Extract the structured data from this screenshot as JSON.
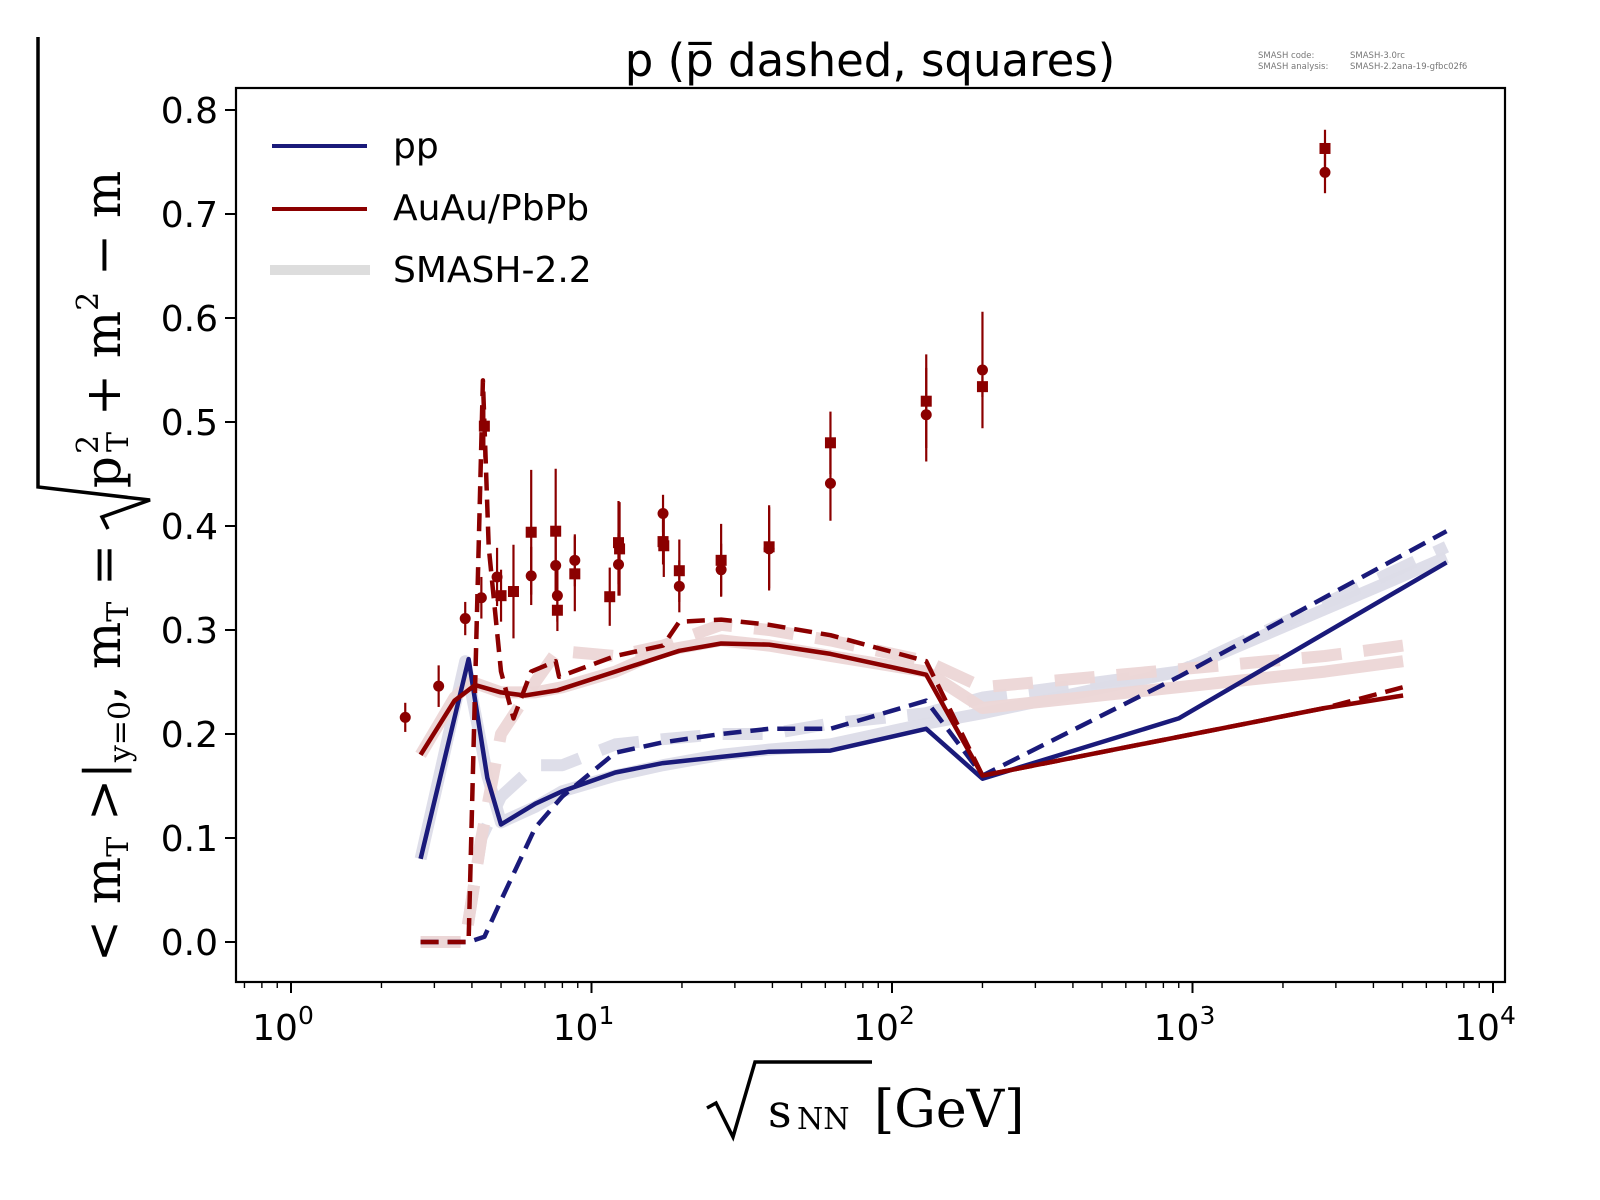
{
  "chart_data": {
    "type": "line",
    "title": "p (p̅ dashed, squares)",
    "annotation": {
      "code_label": "SMASH code:",
      "code_value": "SMASH-3.0rc",
      "analysis_label": "SMASH analysis:",
      "analysis_value": "SMASH-2.2ana-19-gfbc02f6"
    },
    "xlabel": "√s_NN [GeV]",
    "xlabel_parts": {
      "sqrt": "√",
      "s": "s",
      "sub": "NN",
      "unit": "[GeV]"
    },
    "ylabel": "<m_T>|_{y=0}, m_T = √(p_T^2 + m^2) − m",
    "ylabel_parts": {
      "a": "< m",
      "a_sub": "T",
      "b": " >|",
      "b_sub": "y=0",
      "c": ", m",
      "c_sub": "T",
      "d": " = ",
      "e": "p",
      "e_sup": "2",
      "e_sub": "T",
      "f": " + m",
      "f_sup": "2",
      "g": " − m"
    },
    "xscale": "log",
    "xlim": [
      0.66,
      11000
    ],
    "ylim": [
      -0.04,
      0.82
    ],
    "x_ticks": [
      {
        "value": 1,
        "base": "10",
        "exp": "0"
      },
      {
        "value": 10,
        "base": "10",
        "exp": "1"
      },
      {
        "value": 100,
        "base": "10",
        "exp": "2"
      },
      {
        "value": 1000,
        "base": "10",
        "exp": "3"
      },
      {
        "value": 10000,
        "base": "10",
        "exp": "4"
      }
    ],
    "y_ticks": [
      {
        "value": 0.0,
        "label": "0.0"
      },
      {
        "value": 0.1,
        "label": "0.1"
      },
      {
        "value": 0.2,
        "label": "0.2"
      },
      {
        "value": 0.3,
        "label": "0.3"
      },
      {
        "value": 0.4,
        "label": "0.4"
      },
      {
        "value": 0.5,
        "label": "0.5"
      },
      {
        "value": 0.6,
        "label": "0.6"
      },
      {
        "value": 0.7,
        "label": "0.7"
      },
      {
        "value": 0.8,
        "label": "0.8"
      }
    ],
    "grid": false,
    "legend": {
      "placement": "top-left",
      "entries": [
        {
          "label": "pp",
          "color": "#1a1a7a",
          "style": "solid"
        },
        {
          "label": "AuAu/PbPb",
          "color": "#8b0000",
          "style": "solid"
        },
        {
          "label": "SMASH-2.2",
          "color": "#dddddd",
          "style": "thick"
        }
      ]
    },
    "colors": {
      "pp": "#1a1a7a",
      "aa": "#8b0000",
      "smash_pp": "#dcdce8",
      "smash_aa": "#ecd6d6"
    },
    "series": [
      {
        "name": "SMASH-2.2 pp (p)",
        "style": "smash-solid",
        "color": "#dcdce8",
        "x": [
          2.7,
          3.8,
          4.5,
          5.0,
          6.5,
          8.0,
          12,
          17.3,
          27,
          39,
          62.4,
          130,
          200,
          900,
          7000
        ],
        "y": [
          0.08,
          0.27,
          0.16,
          0.115,
          0.13,
          0.145,
          0.16,
          0.17,
          0.18,
          0.185,
          0.19,
          0.21,
          0.22,
          0.26,
          0.37
        ]
      },
      {
        "name": "SMASH-2.2 pp (pbar)",
        "style": "smash-dashed",
        "color": "#dcdce8",
        "x": [
          2.7,
          3.8,
          4.3,
          5.0,
          6.5,
          8.0,
          12,
          17.3,
          27,
          39,
          62.4,
          130,
          200,
          900,
          7000
        ],
        "y": [
          0.0,
          0.0,
          0.1,
          0.14,
          0.17,
          0.17,
          0.19,
          0.195,
          0.2,
          0.2,
          0.21,
          0.22,
          0.235,
          0.26,
          0.38
        ]
      },
      {
        "name": "SMASH-2.2 AuAu/PbPb (p)",
        "style": "smash-solid",
        "color": "#ecd6d6",
        "x": [
          2.7,
          3.5,
          4.0,
          5.0,
          6.5,
          8.0,
          12,
          17.3,
          27,
          39,
          62.4,
          130,
          200,
          2760,
          5020
        ],
        "y": [
          0.18,
          0.235,
          0.25,
          0.24,
          0.24,
          0.245,
          0.26,
          0.28,
          0.29,
          0.285,
          0.275,
          0.26,
          0.225,
          0.26,
          0.27
        ]
      },
      {
        "name": "SMASH-2.2 AuAu/PbPb (pbar)",
        "style": "smash-dashed",
        "color": "#ecd6d6",
        "x": [
          2.7,
          3.8,
          4.3,
          5.0,
          6.5,
          7.7,
          12,
          17.3,
          27,
          39,
          62.4,
          130,
          200,
          2760,
          5020
        ],
        "y": [
          0.0,
          0.0,
          0.1,
          0.2,
          0.25,
          0.28,
          0.275,
          0.285,
          0.305,
          0.3,
          0.29,
          0.27,
          0.245,
          0.275,
          0.285
        ]
      },
      {
        "name": "pp (p)",
        "style": "solid",
        "color": "#1a1a7a",
        "x": [
          2.7,
          3.9,
          4.5,
          5.0,
          6.5,
          8.0,
          12,
          17.3,
          27,
          39,
          62.4,
          130,
          200,
          900,
          7000
        ],
        "y": [
          0.08,
          0.272,
          0.158,
          0.113,
          0.133,
          0.145,
          0.163,
          0.172,
          0.178,
          0.183,
          0.184,
          0.205,
          0.157,
          0.215,
          0.365
        ]
      },
      {
        "name": "pp (pbar)",
        "style": "dashed",
        "color": "#1a1a7a",
        "x": [
          2.7,
          3.9,
          4.4,
          5.0,
          6.5,
          8.0,
          12,
          17.3,
          27,
          39,
          62.4,
          130,
          200,
          900,
          7000
        ],
        "y": [
          0.0,
          0.0,
          0.005,
          0.04,
          0.11,
          0.14,
          0.182,
          0.192,
          0.2,
          0.205,
          0.205,
          0.232,
          0.16,
          0.255,
          0.395
        ]
      },
      {
        "name": "AuAu/PbPb (p)",
        "style": "solid",
        "color": "#8b0000",
        "x": [
          2.7,
          3.5,
          4.1,
          5.0,
          6.0,
          7.7,
          12,
          19.6,
          27,
          39,
          62.4,
          130,
          200,
          2760,
          5020
        ],
        "y": [
          0.18,
          0.232,
          0.247,
          0.24,
          0.237,
          0.242,
          0.26,
          0.28,
          0.287,
          0.286,
          0.277,
          0.257,
          0.16,
          0.225,
          0.237
        ]
      },
      {
        "name": "AuAu/PbPb (pbar)",
        "style": "dashed",
        "color": "#8b0000",
        "x": [
          2.7,
          3.9,
          4.35,
          4.55,
          5.0,
          5.5,
          6.3,
          7.6,
          7.8,
          12,
          17.3,
          19.6,
          27,
          39,
          62.4,
          130,
          200,
          2760,
          5020
        ],
        "y": [
          0.0,
          0.0,
          0.54,
          0.38,
          0.26,
          0.215,
          0.26,
          0.27,
          0.255,
          0.275,
          0.285,
          0.308,
          0.31,
          0.305,
          0.295,
          0.27,
          0.16,
          0.225,
          0.245
        ]
      }
    ],
    "data_points": {
      "proton_circles": [
        {
          "x": 2.4,
          "y": 0.216,
          "err": 0.014
        },
        {
          "x": 3.1,
          "y": 0.246,
          "err": 0.02
        },
        {
          "x": 3.8,
          "y": 0.311,
          "err": 0.016
        },
        {
          "x": 4.3,
          "y": 0.331,
          "err": 0.02
        },
        {
          "x": 4.85,
          "y": 0.351,
          "err": 0.028
        },
        {
          "x": 6.3,
          "y": 0.352,
          "err": 0.028
        },
        {
          "x": 7.6,
          "y": 0.362,
          "err": 0.028
        },
        {
          "x": 7.7,
          "y": 0.333,
          "err": 0.025
        },
        {
          "x": 8.8,
          "y": 0.367,
          "err": 0.025
        },
        {
          "x": 12.3,
          "y": 0.363,
          "err": 0.03
        },
        {
          "x": 17.3,
          "y": 0.412,
          "err": 0.018
        },
        {
          "x": 19.6,
          "y": 0.342,
          "err": 0.025
        },
        {
          "x": 27,
          "y": 0.358,
          "err": 0.025
        },
        {
          "x": 39,
          "y": 0.378,
          "err": 0.04
        },
        {
          "x": 62.4,
          "y": 0.441,
          "err": 0.036
        },
        {
          "x": 130,
          "y": 0.507,
          "err": 0.045
        },
        {
          "x": 200,
          "y": 0.55,
          "err": 0.056
        },
        {
          "x": 2760,
          "y": 0.74,
          "err": 0.02
        }
      ],
      "antiproton_squares": [
        {
          "x": 4.4,
          "y": 0.496,
          "err": 0.03
        },
        {
          "x": 5.0,
          "y": 0.333,
          "err": 0.025
        },
        {
          "x": 5.5,
          "y": 0.337,
          "err": 0.045
        },
        {
          "x": 6.3,
          "y": 0.394,
          "err": 0.06
        },
        {
          "x": 7.6,
          "y": 0.395,
          "err": 0.06
        },
        {
          "x": 7.7,
          "y": 0.319,
          "err": 0.02
        },
        {
          "x": 8.8,
          "y": 0.354,
          "err": 0.036
        },
        {
          "x": 11.5,
          "y": 0.332,
          "err": 0.028
        },
        {
          "x": 12.3,
          "y": 0.384,
          "err": 0.04
        },
        {
          "x": 12.4,
          "y": 0.378,
          "err": 0.045
        },
        {
          "x": 17.3,
          "y": 0.385,
          "err": 0.022
        },
        {
          "x": 17.4,
          "y": 0.381,
          "err": 0.03
        },
        {
          "x": 19.6,
          "y": 0.357,
          "err": 0.03
        },
        {
          "x": 27,
          "y": 0.367,
          "err": 0.035
        },
        {
          "x": 39,
          "y": 0.38,
          "err": 0.04
        },
        {
          "x": 62.4,
          "y": 0.48,
          "err": 0.03
        },
        {
          "x": 130,
          "y": 0.52,
          "err": 0.045
        },
        {
          "x": 200,
          "y": 0.534,
          "err": 0.01
        },
        {
          "x": 2760,
          "y": 0.763,
          "err": 0.018
        }
      ]
    }
  }
}
